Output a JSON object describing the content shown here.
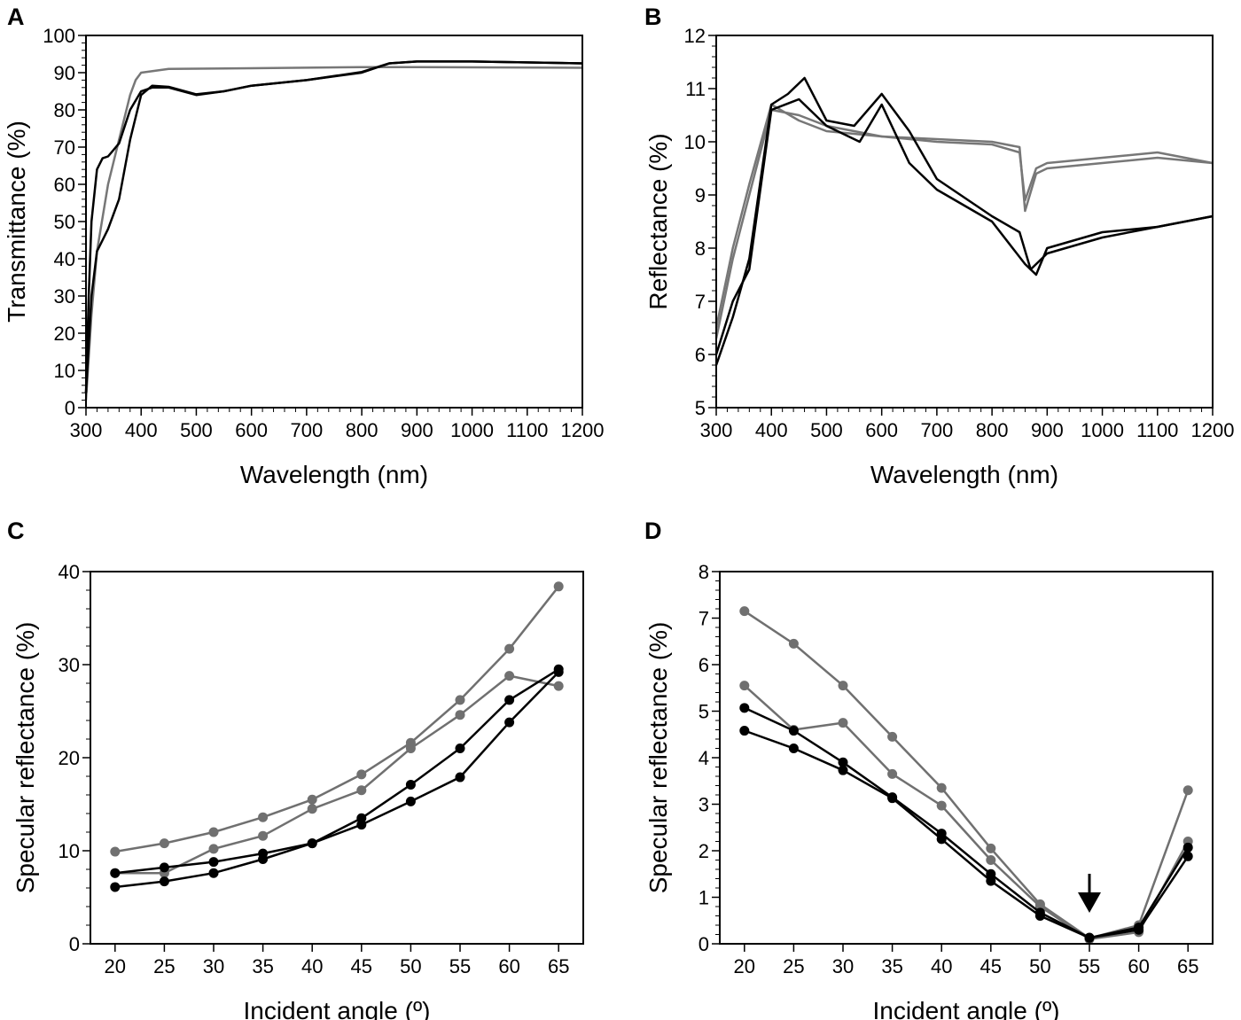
{
  "chart_data": [
    {
      "panel": "A",
      "type": "line",
      "xlabel": "Wavelength (nm)",
      "ylabel": "Transmittance (%)",
      "xlim": [
        300,
        1200
      ],
      "ylim": [
        0,
        100
      ],
      "xticks": [
        300,
        400,
        500,
        600,
        700,
        800,
        900,
        1000,
        1100,
        1200
      ],
      "yticks": [
        0,
        10,
        20,
        30,
        40,
        50,
        60,
        70,
        80,
        90,
        100
      ],
      "grid": false,
      "series": [
        {
          "color": "#777777",
          "x": [
            300,
            310,
            320,
            340,
            360,
            380,
            390,
            400,
            450,
            600,
            800,
            900,
            1200
          ],
          "y": [
            2,
            25,
            42,
            60,
            72,
            84,
            88,
            90,
            91,
            91.2,
            91.5,
            91.5,
            91.3
          ]
        },
        {
          "color": "#000000",
          "x": [
            300,
            305,
            310,
            320,
            330,
            340,
            360,
            380,
            400,
            420,
            450,
            500,
            550,
            600,
            700,
            800,
            850,
            900,
            1000,
            1200
          ],
          "y": [
            4,
            30,
            50,
            64,
            67,
            67.5,
            71,
            80,
            85,
            86,
            86,
            84,
            85,
            86.5,
            88,
            90,
            92.5,
            93,
            93,
            92.5
          ]
        },
        {
          "color": "#000000",
          "x": [
            300,
            310,
            320,
            330,
            340,
            360,
            380,
            400,
            420,
            450,
            500,
            550,
            600,
            700,
            800,
            850,
            900,
            1000,
            1200
          ],
          "y": [
            4,
            30,
            42,
            45,
            48,
            56,
            72,
            84,
            86.5,
            86.2,
            84.2,
            85,
            86.5,
            88,
            90.2,
            92.5,
            93,
            93,
            92.5
          ]
        }
      ]
    },
    {
      "panel": "B",
      "type": "line",
      "xlabel": "Wavelength (nm)",
      "ylabel": "Reflectance (%)",
      "xlim": [
        300,
        1200
      ],
      "ylim": [
        5,
        12
      ],
      "xticks": [
        300,
        400,
        500,
        600,
        700,
        800,
        900,
        1000,
        1100,
        1200
      ],
      "yticks": [
        5,
        6,
        7,
        8,
        9,
        10,
        11,
        12
      ],
      "grid": false,
      "series": [
        {
          "color": "#777777",
          "x": [
            300,
            330,
            360,
            400,
            450,
            500,
            600,
            700,
            800,
            850,
            860,
            880,
            900,
            1000,
            1100,
            1200
          ],
          "y": [
            6.3,
            7.8,
            9.0,
            10.6,
            10.5,
            10.3,
            10.1,
            10.05,
            10.0,
            9.9,
            8.7,
            9.4,
            9.5,
            9.6,
            9.7,
            9.6
          ]
        },
        {
          "color": "#777777",
          "x": [
            300,
            330,
            360,
            400,
            450,
            500,
            600,
            700,
            800,
            850,
            860,
            880,
            900,
            1000,
            1100,
            1200
          ],
          "y": [
            6.5,
            8.0,
            9.2,
            10.7,
            10.4,
            10.2,
            10.1,
            10.0,
            9.95,
            9.8,
            8.9,
            9.5,
            9.6,
            9.7,
            9.8,
            9.6
          ]
        },
        {
          "color": "#000000",
          "x": [
            300,
            330,
            360,
            400,
            430,
            460,
            500,
            550,
            600,
            650,
            700,
            800,
            850,
            870,
            900,
            1000,
            1100,
            1200
          ],
          "y": [
            5.8,
            6.7,
            7.8,
            10.7,
            10.9,
            11.2,
            10.4,
            10.3,
            10.9,
            10.2,
            9.3,
            8.6,
            8.3,
            7.6,
            7.9,
            8.2,
            8.4,
            8.6
          ]
        },
        {
          "color": "#000000",
          "x": [
            300,
            330,
            360,
            400,
            450,
            500,
            560,
            600,
            650,
            700,
            800,
            860,
            880,
            900,
            1000,
            1100,
            1200
          ],
          "y": [
            6.0,
            7.0,
            7.6,
            10.6,
            10.8,
            10.3,
            10.0,
            10.7,
            9.6,
            9.1,
            8.5,
            7.7,
            7.5,
            8.0,
            8.3,
            8.4,
            8.6
          ]
        }
      ]
    },
    {
      "panel": "C",
      "type": "line",
      "xlabel": "Incident angle (º)",
      "ylabel": "Specular reflectance (%)",
      "xlim": [
        17.5,
        67.5
      ],
      "ylim": [
        0,
        40
      ],
      "xticks": [
        20,
        25,
        30,
        35,
        40,
        45,
        50,
        55,
        60,
        65
      ],
      "yticks": [
        0,
        10,
        20,
        30,
        40
      ],
      "grid": false,
      "x": [
        20,
        25,
        30,
        35,
        40,
        45,
        50,
        55,
        60,
        65
      ],
      "series": [
        {
          "color": "#707070",
          "values": [
            9.9,
            10.8,
            12.0,
            13.6,
            15.5,
            18.2,
            21.6,
            26.2,
            31.7,
            38.4
          ]
        },
        {
          "color": "#707070",
          "values": [
            7.6,
            7.6,
            10.2,
            11.6,
            14.5,
            16.5,
            21.0,
            24.6,
            28.8,
            27.7
          ]
        },
        {
          "color": "#000000",
          "values": [
            7.6,
            8.2,
            8.8,
            9.7,
            10.8,
            13.5,
            17.1,
            21.0,
            26.2,
            29.5
          ]
        },
        {
          "color": "#000000",
          "values": [
            6.1,
            6.7,
            7.6,
            9.1,
            10.8,
            12.8,
            15.3,
            17.9,
            23.8,
            29.2
          ]
        }
      ]
    },
    {
      "panel": "D",
      "type": "line",
      "xlabel": "Incident angle (º)",
      "ylabel": "Specular reflectance (%)",
      "xlim": [
        17.5,
        67.5
      ],
      "ylim": [
        0,
        8
      ],
      "xticks": [
        20,
        25,
        30,
        35,
        40,
        45,
        50,
        55,
        60,
        65
      ],
      "yticks": [
        0,
        1,
        2,
        3,
        4,
        5,
        6,
        7,
        8
      ],
      "grid": false,
      "annotation": {
        "type": "down-arrow",
        "x": 55
      },
      "x": [
        20,
        25,
        30,
        35,
        40,
        45,
        50,
        55,
        60,
        65
      ],
      "series": [
        {
          "color": "#707070",
          "values": [
            7.15,
            6.45,
            5.55,
            4.45,
            3.35,
            2.05,
            0.85,
            0.12,
            0.4,
            3.3
          ]
        },
        {
          "color": "#707070",
          "values": [
            5.55,
            4.6,
            4.75,
            3.65,
            2.97,
            1.8,
            0.8,
            0.1,
            0.25,
            2.2
          ]
        },
        {
          "color": "#000000",
          "values": [
            5.07,
            4.58,
            3.9,
            3.15,
            2.37,
            1.5,
            0.67,
            0.13,
            0.35,
            2.07
          ]
        },
        {
          "color": "#000000",
          "values": [
            4.58,
            4.2,
            3.73,
            3.13,
            2.25,
            1.35,
            0.6,
            0.13,
            0.3,
            1.88
          ]
        }
      ]
    }
  ]
}
